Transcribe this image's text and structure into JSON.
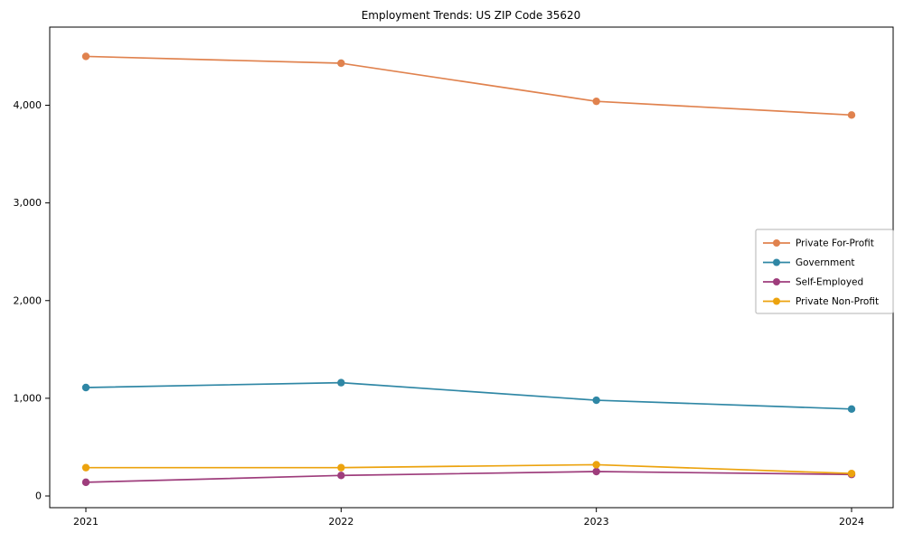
{
  "chart_data": {
    "type": "line",
    "title": "Employment Trends: US ZIP Code 35620",
    "categories": [
      "2021",
      "2022",
      "2023",
      "2024"
    ],
    "series": [
      {
        "name": "Private For-Profit",
        "color": "#e0824e",
        "values": [
          4500,
          4430,
          4040,
          3900
        ]
      },
      {
        "name": "Government",
        "color": "#2f87a5",
        "values": [
          1110,
          1160,
          980,
          890
        ]
      },
      {
        "name": "Self-Employed",
        "color": "#9e3d7c",
        "values": [
          140,
          210,
          250,
          220
        ]
      },
      {
        "name": "Private Non-Profit",
        "color": "#eca30e",
        "values": [
          290,
          290,
          320,
          230
        ]
      }
    ],
    "ylim": [
      -120,
      4800
    ],
    "yticks": [
      0,
      1000,
      2000,
      3000,
      4000
    ],
    "ytick_labels": [
      "0",
      "1,000",
      "2,000",
      "3,000",
      "4,000"
    ],
    "xlabel": "",
    "ylabel": "",
    "grid": false,
    "legend_position": "center right",
    "axis_color": "#000000",
    "legend_border_color": "#b3b3b3"
  }
}
